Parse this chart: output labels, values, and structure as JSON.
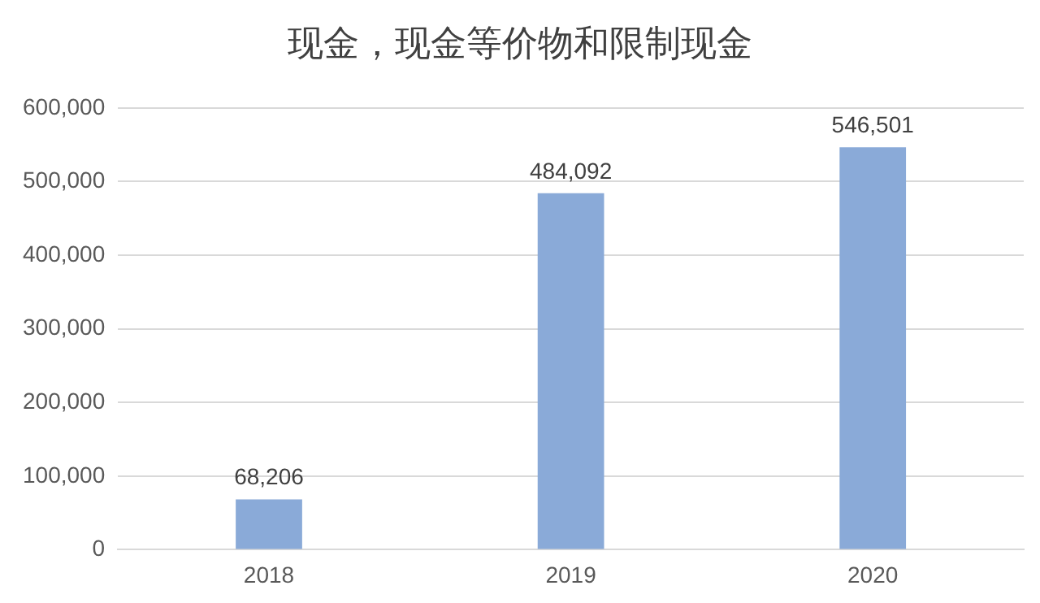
{
  "chart_data": {
    "type": "bar",
    "title": "现金，现金等价物和限制现金",
    "categories": [
      "2018",
      "2019",
      "2020"
    ],
    "values": [
      68206,
      484092,
      546501
    ],
    "value_labels": [
      "68,206",
      "484,092",
      "546,501"
    ],
    "color": "#8aaad8",
    "ylim": [
      0,
      600000
    ],
    "yticks": [
      {
        "value": 0,
        "label": "0"
      },
      {
        "value": 100000,
        "label": "100,000"
      },
      {
        "value": 200000,
        "label": "200,000"
      },
      {
        "value": 300000,
        "label": "300,000"
      },
      {
        "value": 400000,
        "label": "400,000"
      },
      {
        "value": 500000,
        "label": "500,000"
      },
      {
        "value": 600000,
        "label": "600,000"
      }
    ],
    "grid": "y",
    "legend": false
  }
}
